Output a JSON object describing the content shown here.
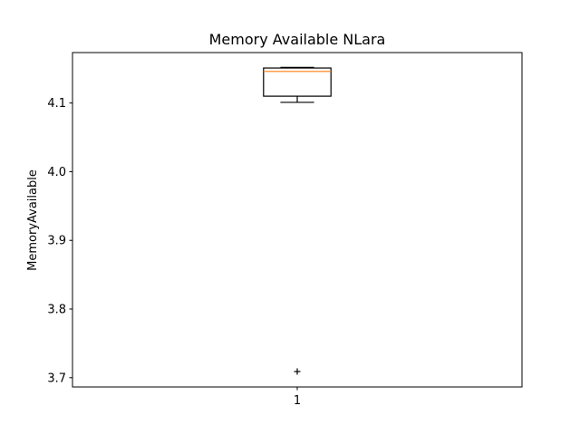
{
  "chart_data": {
    "type": "boxplot",
    "title": "Memory Available NLara",
    "xlabel": "",
    "ylabel": "MemoryAvailable",
    "categories": [
      "1"
    ],
    "ylim": [
      3.6865,
      4.1735
    ],
    "yticks": [
      3.7,
      3.8,
      3.9,
      4.0,
      4.1
    ],
    "ytick_labels": [
      "3.7",
      "3.8",
      "3.9",
      "4.0",
      "4.1"
    ],
    "boxes": [
      {
        "category": "1",
        "whisker_low": 4.101,
        "q1": 4.11,
        "median": 4.146,
        "q3": 4.151,
        "whisker_high": 4.152,
        "outliers": [
          3.709
        ]
      }
    ],
    "grid": false,
    "legend": "none"
  },
  "colors": {
    "median": "#ff7f0e",
    "box": "#000000",
    "axes": "#000000",
    "background": "#ffffff"
  }
}
